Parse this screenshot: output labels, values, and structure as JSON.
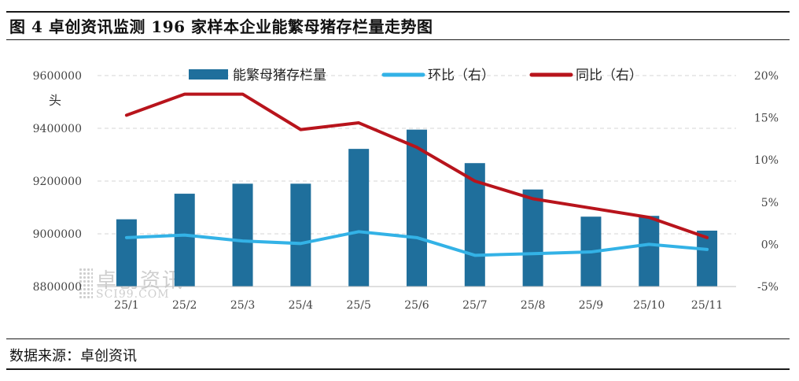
{
  "header": {
    "title": "图 4 卓创资讯监测 196 家样本企业能繁母猪存栏量走势图"
  },
  "footer": {
    "source": "数据来源：卓创资讯"
  },
  "watermark": {
    "cn": "卓创资讯",
    "en": "SCI99.COM"
  },
  "chart_data": {
    "type": "bar",
    "title": "卓创资讯监测 196 家样本企业能繁母猪存栏量走势图",
    "categories": [
      "25/1",
      "25/2",
      "25/3",
      "25/4",
      "25/5",
      "25/6",
      "25/7",
      "25/8",
      "25/9",
      "25/10",
      "25/11"
    ],
    "left_axis": {
      "unit_label": "头",
      "ylim": [
        8800000,
        9600000
      ],
      "ticks": [
        8800000,
        9000000,
        9200000,
        9400000,
        9600000
      ],
      "tick_labels": [
        "8800000",
        "9000000",
        "9200000",
        "9400000",
        "9600000"
      ]
    },
    "right_axis": {
      "ylim": [
        -5,
        20
      ],
      "ticks": [
        -5,
        0,
        5,
        10,
        15,
        20
      ],
      "tick_labels": [
        "-5%",
        "0%",
        "5%",
        "10%",
        "15%",
        "20%"
      ]
    },
    "series": [
      {
        "name": "能繁母猪存栏量",
        "type": "bar",
        "axis": "left",
        "color": "#1f6f9c",
        "values": [
          9055000,
          9152000,
          9190000,
          9190000,
          9322000,
          9395000,
          9268000,
          9168000,
          9065000,
          9068000,
          9012000
        ]
      },
      {
        "name": "环比（右）",
        "type": "line",
        "axis": "right",
        "color": "#33b2e6",
        "values": [
          0.8,
          1.1,
          0.4,
          0.1,
          1.5,
          0.8,
          -1.3,
          -1.1,
          -0.9,
          0.0,
          -0.6
        ]
      },
      {
        "name": "同比（右）",
        "type": "line",
        "axis": "right",
        "color": "#b8141c",
        "values": [
          15.3,
          17.8,
          17.8,
          13.6,
          14.4,
          11.5,
          7.5,
          5.4,
          4.3,
          3.2,
          0.8
        ]
      }
    ],
    "legend_position": "top",
    "grid": "horizontal dashed"
  }
}
